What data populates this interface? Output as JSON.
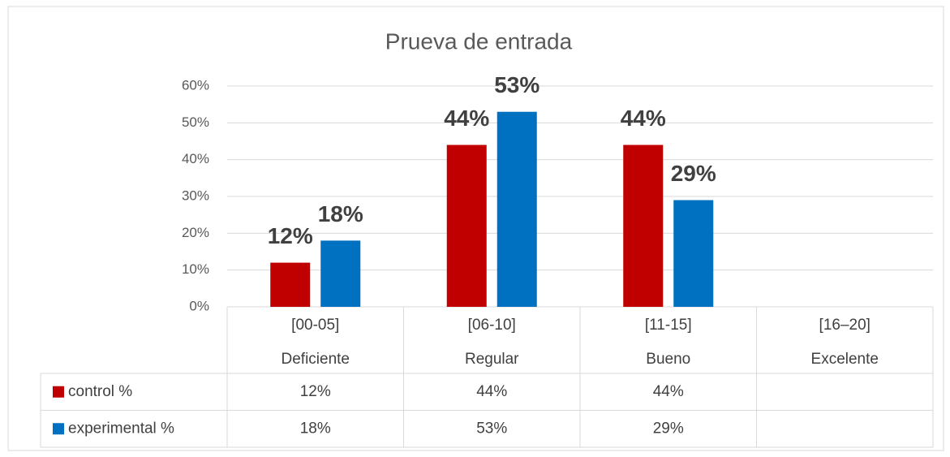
{
  "chart_data": {
    "type": "bar",
    "title": "Prueva de entrada",
    "categories": [
      [
        "[00-05]",
        "Deficiente"
      ],
      [
        "[06-10]",
        "Regular"
      ],
      [
        "[11-15]",
        "Bueno"
      ],
      [
        "[16–20]",
        "Excelente"
      ]
    ],
    "series": [
      {
        "name": "control %",
        "color": "#c00000",
        "values": [
          12,
          44,
          44,
          null
        ],
        "value_labels": [
          "12%",
          "44%",
          "44%",
          null
        ]
      },
      {
        "name": "experimental %",
        "color": "#0070c0",
        "values": [
          18,
          53,
          29,
          null
        ],
        "value_labels": [
          "18%",
          "53%",
          "29%",
          null
        ]
      }
    ],
    "ylim": [
      0,
      60
    ],
    "yticks": [
      {
        "value": 0,
        "label": "0%"
      },
      {
        "value": 10,
        "label": "10%"
      },
      {
        "value": 20,
        "label": "20%"
      },
      {
        "value": 30,
        "label": "30%"
      },
      {
        "value": 40,
        "label": "40%"
      },
      {
        "value": 50,
        "label": "50%"
      },
      {
        "value": 60,
        "label": "60%"
      }
    ],
    "grid": true,
    "data_table": true
  }
}
